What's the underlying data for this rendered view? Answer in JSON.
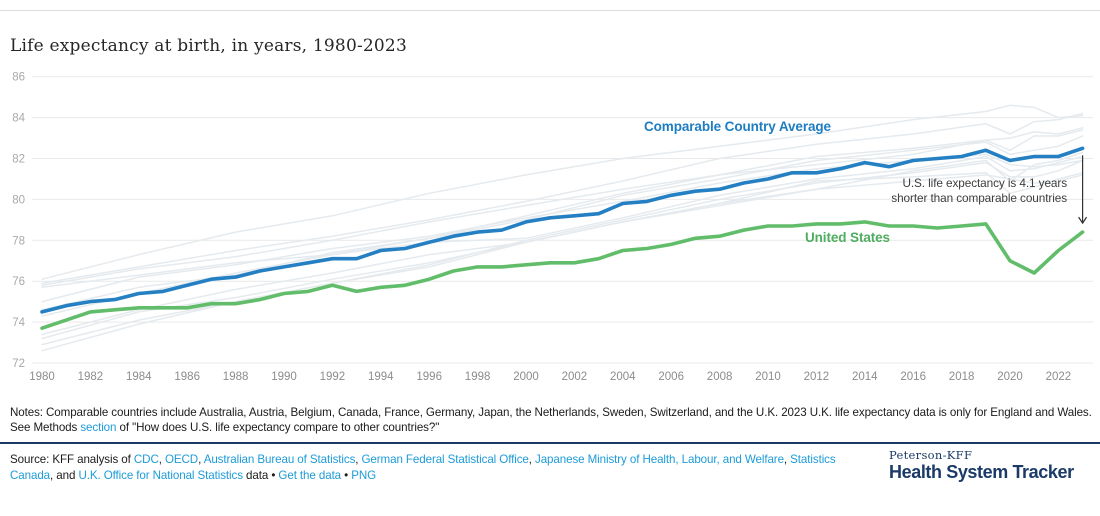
{
  "page": {
    "title": "Life expectancy at birth, in years, 1980-2023"
  },
  "chart_data": {
    "type": "line",
    "title": "Life expectancy at birth, in years, 1980-2023",
    "xlabel": "",
    "ylabel": "",
    "ylim": [
      72,
      86
    ],
    "yticks": [
      72,
      74,
      76,
      78,
      80,
      82,
      84,
      86
    ],
    "xticks": [
      1980,
      1982,
      1984,
      1986,
      1988,
      1990,
      1992,
      1994,
      1996,
      1998,
      2000,
      2002,
      2004,
      2006,
      2008,
      2010,
      2012,
      2014,
      2016,
      2018,
      2020,
      2022
    ],
    "grid": true,
    "legend_position": "inline-labels",
    "years": [
      1980,
      1981,
      1982,
      1983,
      1984,
      1985,
      1986,
      1987,
      1988,
      1989,
      1990,
      1991,
      1992,
      1993,
      1994,
      1995,
      1996,
      1997,
      1998,
      1999,
      2000,
      2001,
      2002,
      2003,
      2004,
      2005,
      2006,
      2007,
      2008,
      2009,
      2010,
      2011,
      2012,
      2013,
      2014,
      2015,
      2016,
      2017,
      2018,
      2019,
      2020,
      2021,
      2022,
      2023
    ],
    "series": [
      {
        "name": "Comparable Country Average",
        "color": "#2580c3",
        "values": [
          74.5,
          74.8,
          75.0,
          75.1,
          75.4,
          75.5,
          75.8,
          76.1,
          76.2,
          76.5,
          76.7,
          76.9,
          77.1,
          77.1,
          77.5,
          77.6,
          77.9,
          78.2,
          78.4,
          78.5,
          78.9,
          79.1,
          79.2,
          79.3,
          79.8,
          79.9,
          80.2,
          80.4,
          80.5,
          80.8,
          81.0,
          81.3,
          81.3,
          81.5,
          81.8,
          81.6,
          81.9,
          82.0,
          82.1,
          82.4,
          81.9,
          82.1,
          82.1,
          82.5
        ]
      },
      {
        "name": "United States",
        "color": "#62bd6b",
        "values": [
          73.7,
          74.1,
          74.5,
          74.6,
          74.7,
          74.7,
          74.7,
          74.9,
          74.9,
          75.1,
          75.4,
          75.5,
          75.8,
          75.5,
          75.7,
          75.8,
          76.1,
          76.5,
          76.7,
          76.7,
          76.8,
          76.9,
          76.9,
          77.1,
          77.5,
          77.6,
          77.8,
          78.1,
          78.2,
          78.5,
          78.7,
          78.7,
          78.8,
          78.8,
          78.9,
          78.7,
          78.7,
          78.6,
          78.7,
          78.8,
          77.0,
          76.4,
          77.5,
          78.4
        ]
      }
    ],
    "background_keypoint_years": [
      1980,
      1984,
      1988,
      1992,
      1996,
      2000,
      2004,
      2008,
      2012,
      2016,
      2019,
      2020,
      2021,
      2022,
      2023
    ],
    "background_series": [
      {
        "values": [
          76.1,
          77.3,
          78.4,
          79.2,
          80.3,
          81.2,
          82.0,
          82.6,
          83.2,
          83.9,
          84.3,
          84.6,
          84.5,
          84.0,
          84.1
        ]
      },
      {
        "values": [
          75.9,
          76.7,
          77.5,
          78.2,
          79.0,
          79.9,
          80.9,
          82.0,
          82.7,
          83.2,
          83.7,
          83.2,
          83.8,
          83.9,
          84.2
        ]
      },
      {
        "values": [
          75.8,
          76.6,
          77.2,
          78.0,
          78.9,
          79.7,
          80.5,
          81.2,
          81.7,
          82.2,
          82.9,
          82.4,
          83.1,
          83.1,
          83.4
        ]
      },
      {
        "values": [
          75.7,
          76.3,
          76.9,
          77.3,
          77.9,
          78.1,
          79.1,
          80.2,
          81.0,
          81.5,
          82.1,
          81.4,
          81.5,
          81.8,
          82.1
        ]
      },
      {
        "values": [
          75.0,
          76.2,
          76.8,
          77.6,
          78.2,
          79.1,
          79.9,
          80.8,
          81.5,
          81.9,
          82.2,
          81.7,
          81.6,
          81.7,
          81.9
        ]
      },
      {
        "values": [
          74.6,
          75.7,
          76.3,
          77.4,
          78.1,
          79.2,
          80.3,
          81.2,
          82.1,
          82.5,
          82.9,
          83.0,
          83.3,
          83.2,
          83.5
        ]
      },
      {
        "values": [
          74.3,
          75.4,
          76.4,
          77.3,
          78.1,
          79.0,
          80.2,
          81.0,
          81.9,
          82.4,
          82.8,
          82.2,
          82.4,
          82.6,
          83.1
        ]
      },
      {
        "values": [
          73.4,
          74.6,
          75.6,
          76.4,
          77.3,
          77.9,
          78.9,
          79.7,
          80.5,
          81.4,
          81.9,
          80.9,
          81.7,
          81.9,
          82.3
        ]
      },
      {
        "values": [
          73.2,
          74.5,
          75.2,
          76.1,
          76.9,
          77.9,
          78.9,
          79.8,
          80.9,
          81.1,
          81.3,
          80.3,
          80.6,
          81.0,
          81.3
        ]
      },
      {
        "values": [
          72.9,
          74.1,
          75.0,
          75.9,
          76.7,
          77.9,
          78.9,
          79.8,
          80.5,
          80.9,
          81.2,
          81.0,
          80.8,
          80.9,
          81.2
        ]
      },
      {
        "values": [
          72.6,
          73.9,
          75.0,
          75.9,
          76.8,
          78.0,
          79.0,
          80.0,
          80.8,
          81.3,
          81.8,
          81.1,
          81.1,
          81.4,
          81.9
        ]
      }
    ],
    "annotation": {
      "line1": "U.S. life expectancy is 4.1 years",
      "line2": "shorter than comparable countries"
    },
    "style": {
      "grid_color": "#e9e9e9",
      "background_line_color": "#e5eaee",
      "ytick_color": "#a9a9a9",
      "xtick_color": "#8c8c8c",
      "arrow_color": "#333333",
      "cca_label_color": "#1e7dc2",
      "us_label_color": "#4fae60",
      "link_color": "#1d9bd8",
      "brand_navy": "#1b3a68"
    }
  },
  "notes": {
    "line1": "Notes: Comparable countries include Australia, Austria, Belgium, Canada, France, Germany, Japan, the Netherlands, Sweden, Switzerland, and the U.K. 2023 U.K. life expectancy data is only for England and Wales.",
    "line2_prefix": "See Methods ",
    "link_label": "section",
    "line2_suffix": " of \"How does U.S. life expectancy compare to other countries?\""
  },
  "source": {
    "segments": [
      {
        "t": "Source: KFF analysis of ",
        "link": false
      },
      {
        "t": "CDC",
        "link": true
      },
      {
        "t": ", ",
        "link": false
      },
      {
        "t": "OECD",
        "link": true
      },
      {
        "t": ", ",
        "link": false
      },
      {
        "t": "Australian Bureau of Statistics",
        "link": true
      },
      {
        "t": ", ",
        "link": false
      },
      {
        "t": "German Federal Statistical Office",
        "link": true
      },
      {
        "t": ", ",
        "link": false
      },
      {
        "t": "Japanese Ministry of Health, Labour, and Welfare",
        "link": true
      },
      {
        "t": ", ",
        "link": false
      },
      {
        "t": "Statistics Canada",
        "link": true
      },
      {
        "t": ", and ",
        "link": false
      },
      {
        "t": "U.K. Office for National Statistics",
        "link": true
      },
      {
        "t": " data ",
        "link": false
      },
      {
        "t": "• ",
        "link": false
      },
      {
        "t": "Get the data",
        "link": true
      },
      {
        "t": " • ",
        "link": false
      },
      {
        "t": "PNG",
        "link": true
      }
    ]
  },
  "logo": {
    "top": "Peterson-KFF",
    "bottom": "Health System Tracker"
  }
}
